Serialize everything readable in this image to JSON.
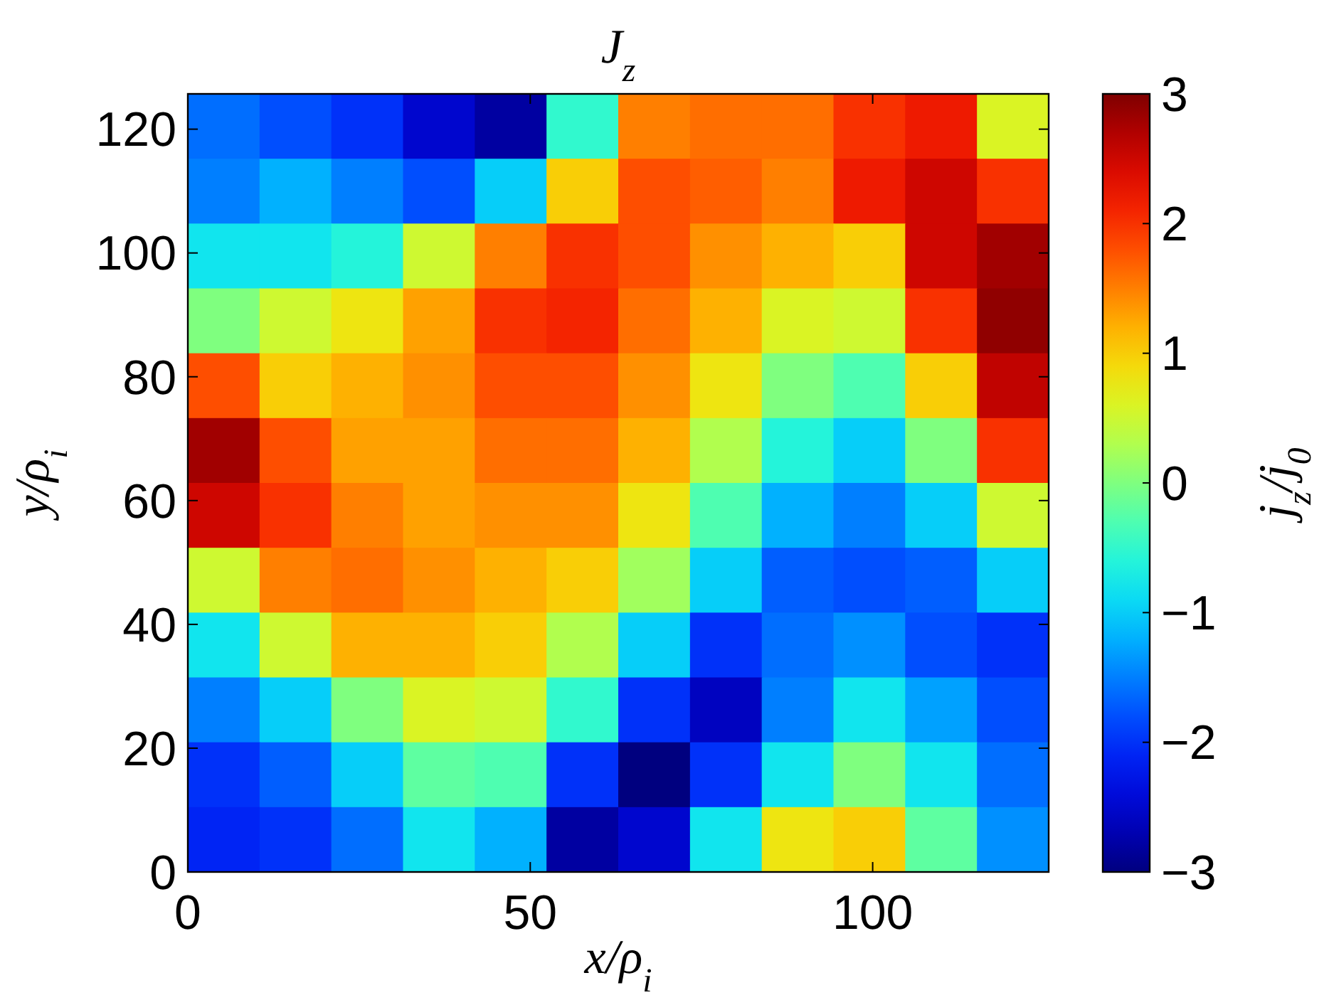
{
  "chart_data": {
    "type": "heatmap",
    "title": "J$_{z}$",
    "xlabel": "x/ρ$_{i}$",
    "ylabel": "y/ρ$_{i}$",
    "clabel": "j$_{z}$/j$_{0}$",
    "xlim": [
      0,
      125.7
    ],
    "xticks": [
      0,
      50,
      100
    ],
    "ylim": [
      0,
      125.7
    ],
    "yticks": [
      0,
      20,
      40,
      60,
      80,
      100,
      120
    ],
    "clim": [
      -3,
      3
    ],
    "cticks": [
      {
        "value": -3,
        "label": "−3"
      },
      {
        "value": -2,
        "label": "−2"
      },
      {
        "value": -1,
        "label": "−1"
      },
      0,
      1,
      2,
      3
    ],
    "cells": [
      [
        -1.6,
        -1.8,
        -2,
        -2.5,
        -2.8,
        -0.5,
        1.5,
        1.6,
        1.6,
        2,
        2.2,
        0.6
      ],
      [
        -1.5,
        -1.2,
        -1.5,
        -1.8,
        -1,
        1,
        1.8,
        1.7,
        1.5,
        2.2,
        2.5,
        2
      ],
      [
        -0.8,
        -0.8,
        -0.6,
        0.5,
        1.5,
        2,
        1.8,
        1.4,
        1.2,
        1,
        2.5,
        2.8
      ],
      [
        0,
        0.5,
        0.8,
        1.3,
        2,
        2.1,
        1.6,
        1.2,
        0.6,
        0.5,
        2,
        2.9
      ],
      [
        1.8,
        1,
        1.2,
        1.4,
        1.8,
        1.8,
        1.4,
        0.8,
        0,
        -0.3,
        1,
        2.6
      ],
      [
        2.8,
        1.8,
        1.3,
        1.3,
        1.6,
        1.6,
        1.2,
        0.3,
        -0.6,
        -1,
        0,
        2
      ],
      [
        2.5,
        2,
        1.5,
        1.3,
        1.4,
        1.4,
        0.8,
        -0.3,
        -1.2,
        -1.5,
        -1,
        0.5
      ],
      [
        0.5,
        1.5,
        1.6,
        1.4,
        1.2,
        1,
        0.2,
        -1,
        -1.7,
        -1.8,
        -1.7,
        -1
      ],
      [
        -0.8,
        0.5,
        1.2,
        1.2,
        1,
        0.3,
        -1,
        -2,
        -1.6,
        -1.4,
        -1.8,
        -2
      ],
      [
        -1.5,
        -1,
        0,
        0.6,
        0.5,
        -0.5,
        -2,
        -2.6,
        -1.5,
        -0.8,
        -1.3,
        -1.8
      ],
      [
        -2,
        -1.7,
        -1,
        -0.2,
        -0.3,
        -2,
        -3,
        -2,
        -0.8,
        0,
        -0.8,
        -1.6
      ],
      [
        -2.1,
        -2,
        -1.6,
        -0.8,
        -1.2,
        -2.8,
        -2.5,
        -0.8,
        0.8,
        1,
        -0.2,
        -1.4
      ]
    ]
  }
}
